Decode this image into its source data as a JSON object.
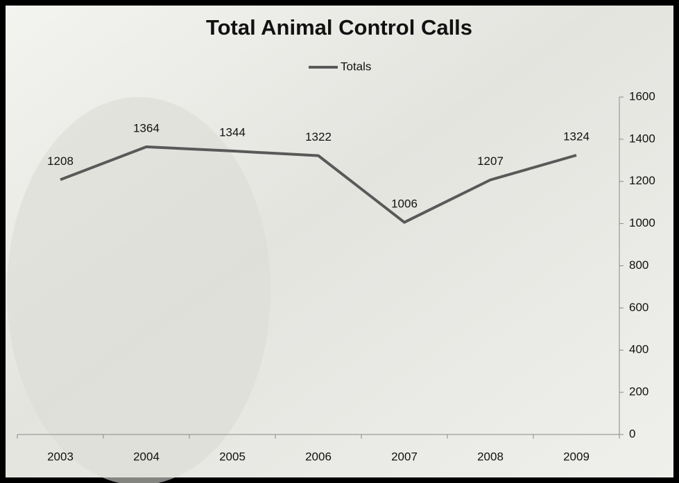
{
  "chart_data": {
    "type": "line",
    "title": "Total Animal Control Calls",
    "categories": [
      "2003",
      "2004",
      "2005",
      "2006",
      "2007",
      "2008",
      "2009"
    ],
    "series": [
      {
        "name": "Totals",
        "color": "#595959",
        "values": [
          1208,
          1364,
          1344,
          1322,
          1006,
          1207,
          1324
        ]
      }
    ],
    "ylim": [
      0,
      1600
    ],
    "yticks": [
      0,
      200,
      400,
      600,
      800,
      1000,
      1200,
      1400,
      1600
    ],
    "y_axis_position": "right",
    "legend": "top",
    "data_labels": true
  }
}
